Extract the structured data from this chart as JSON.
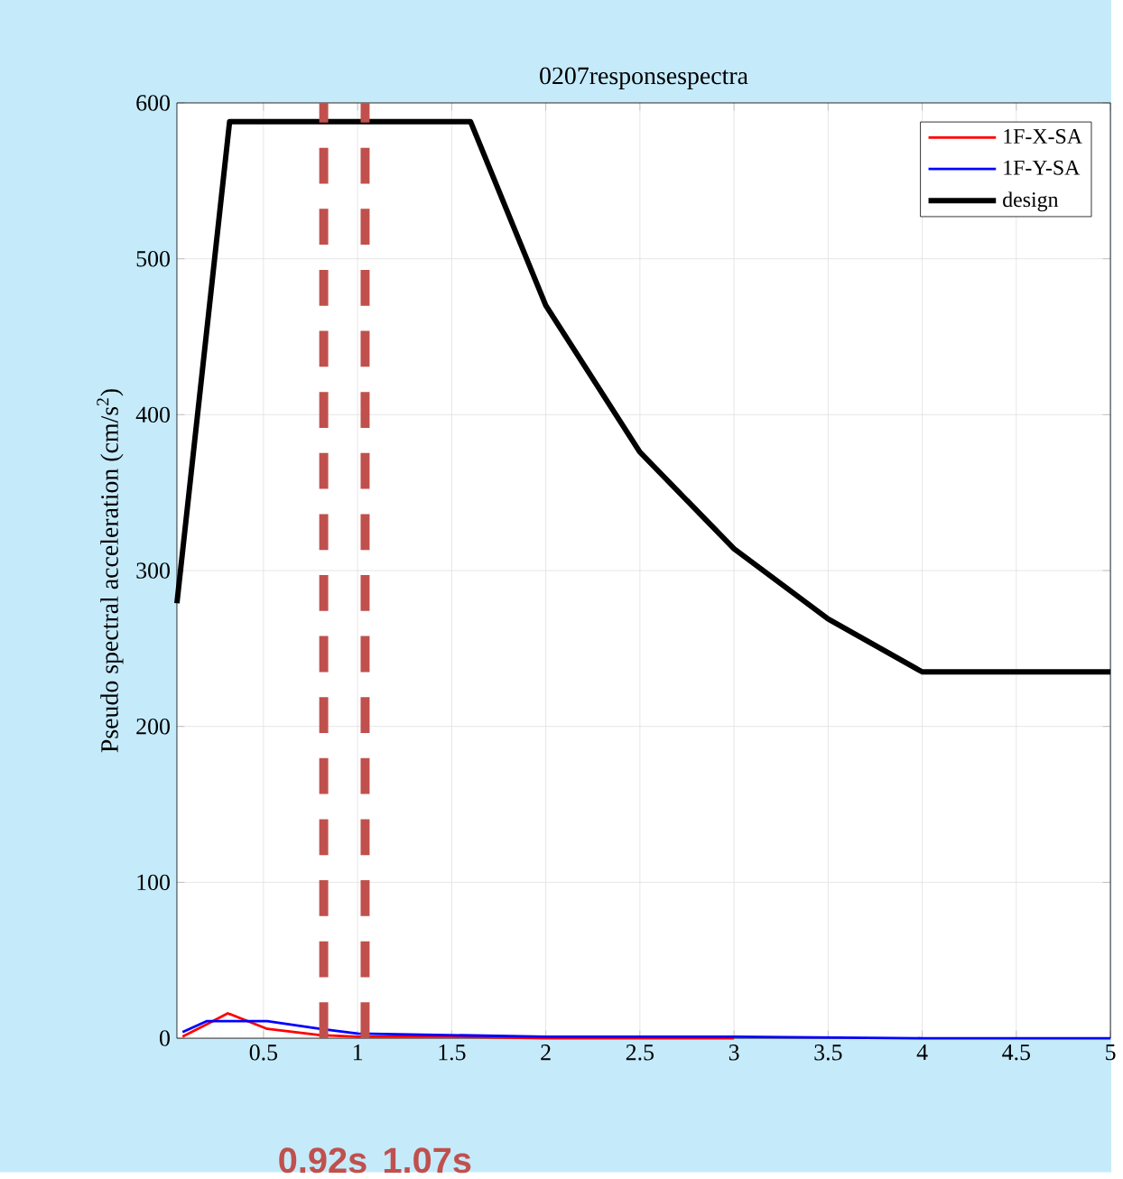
{
  "chart_data": {
    "type": "line",
    "title": "0207responsespectra",
    "ylabel": "Pseudo spectral acceleration (cm/s$^{2}$)",
    "xlim": [
      0.04,
      5
    ],
    "ylim": [
      0,
      600
    ],
    "xticks": [
      0.5,
      1,
      1.5,
      2,
      2.5,
      3,
      3.5,
      4,
      4.5,
      5
    ],
    "yticks": [
      0,
      100,
      200,
      300,
      400,
      500,
      600
    ],
    "grid": true,
    "legend": "top right",
    "line_style": "solid",
    "marker": "none",
    "series": [
      {
        "name": "1F-X-SA",
        "color": "#ff0000",
        "x": [
          0.07,
          0.2,
          0.31,
          0.52,
          0.8,
          1.0,
          1.5,
          2,
          3
        ],
        "values": [
          1,
          9,
          16,
          6,
          2,
          1,
          1,
          0,
          0
        ]
      },
      {
        "name": "1F-Y-SA",
        "color": "#0000ff",
        "x": [
          0.07,
          0.2,
          0.52,
          0.8,
          1.0,
          1.5,
          2,
          3,
          4,
          5
        ],
        "values": [
          4,
          11,
          11,
          6,
          3,
          2,
          1,
          1,
          0,
          0
        ]
      },
      {
        "name": "design",
        "color": "#000000",
        "x": [
          0.04,
          0.32,
          1.6,
          2,
          2.5,
          3,
          3.5,
          4,
          5
        ],
        "values": [
          279,
          588,
          588,
          470,
          376,
          314,
          269,
          235,
          235
        ]
      }
    ],
    "ref_lines": [
      {
        "axis": "x",
        "value": 0.82,
        "label": "0.92s",
        "color": "#c0504d",
        "line_style": "dashed"
      },
      {
        "axis": "x",
        "value": 1.04,
        "label": "1.07s",
        "color": "#c0504d",
        "line_style": "dashed"
      }
    ]
  }
}
